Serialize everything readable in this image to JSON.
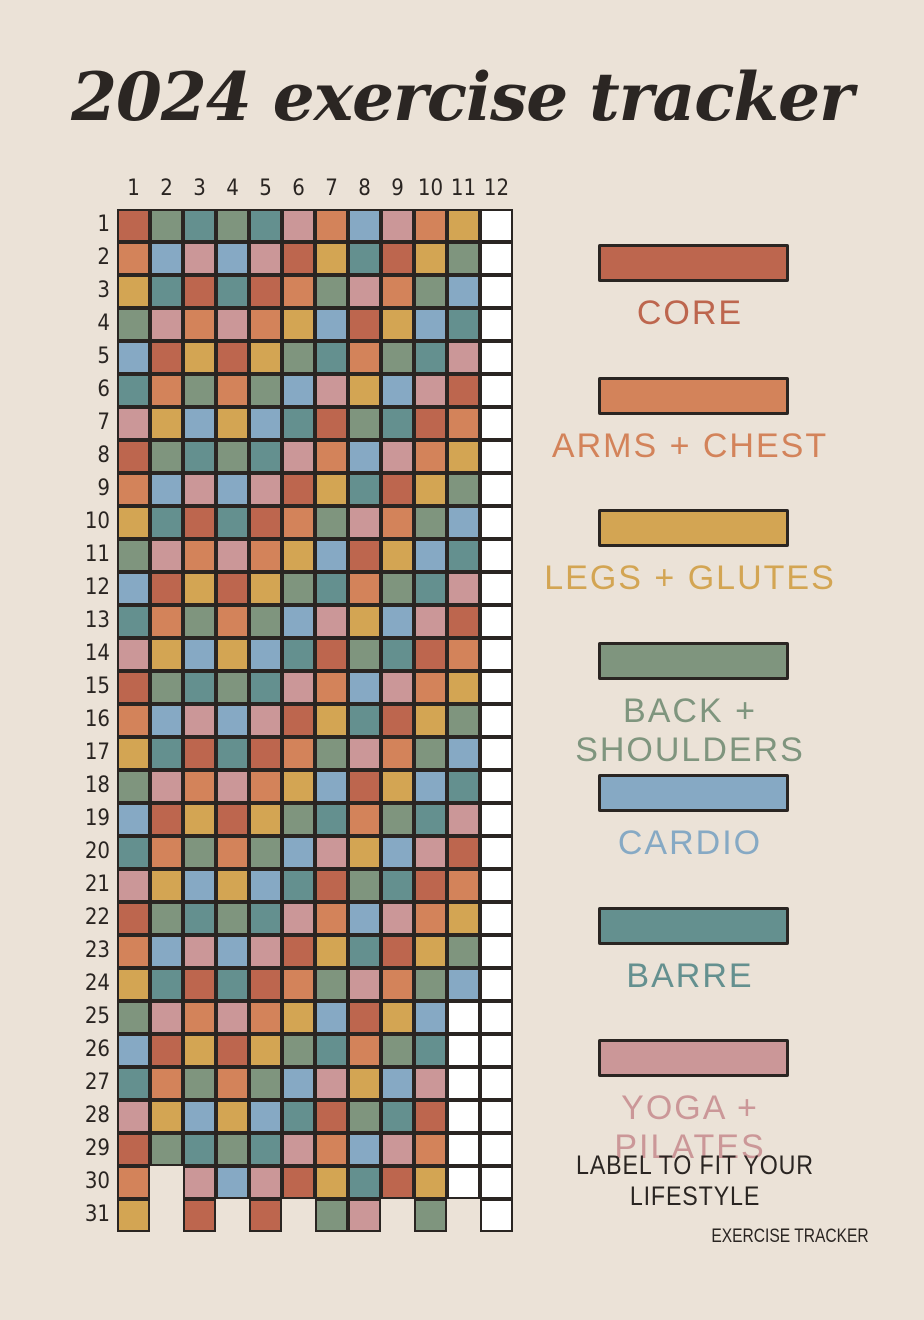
{
  "title": "2024 exercise tracker",
  "months": [
    "1",
    "2",
    "3",
    "4",
    "5",
    "6",
    "7",
    "8",
    "9",
    "10",
    "11",
    "12"
  ],
  "days": [
    "1",
    "2",
    "3",
    "4",
    "5",
    "6",
    "7",
    "8",
    "9",
    "10",
    "11",
    "12",
    "13",
    "14",
    "15",
    "16",
    "17",
    "18",
    "19",
    "20",
    "21",
    "22",
    "23",
    "24",
    "25",
    "26",
    "27",
    "28",
    "29",
    "30",
    "31"
  ],
  "days_in_month": [
    31,
    29,
    31,
    30,
    31,
    30,
    31,
    31,
    30,
    31,
    30,
    31
  ],
  "filled_days_per_month": [
    31,
    29,
    31,
    30,
    31,
    30,
    31,
    31,
    30,
    31,
    24,
    0
  ],
  "colors": {
    "core": "#bd664e",
    "arms_chest": "#d3835a",
    "legs_glutes": "#d3a553",
    "back_shoulders": "#7f957e",
    "cardio": "#86a9c4",
    "barre": "#64908f",
    "yoga_pilates": "#cb9798",
    "empty": "#ffffff",
    "outline": "#2a2522"
  },
  "category_cycle": [
    "core",
    "arms_chest",
    "legs_glutes",
    "back_shoulders",
    "cardio",
    "barre",
    "yoga_pilates"
  ],
  "month_start_offset": [
    0,
    3,
    5,
    3,
    5,
    6,
    1,
    4,
    6,
    1,
    2,
    null
  ],
  "legend": [
    {
      "key": "core",
      "label": "CORE"
    },
    {
      "key": "arms_chest",
      "label": "ARMS + CHEST"
    },
    {
      "key": "legs_glutes",
      "label": "LEGS + GLUTES"
    },
    {
      "key": "back_shoulders",
      "label": "BACK + SHOULDERS"
    },
    {
      "key": "cardio",
      "label": "CARDIO"
    },
    {
      "key": "barre",
      "label": "BARRE"
    },
    {
      "key": "yoga_pilates",
      "label": "YOGA + PILATES"
    }
  ],
  "note": "LABEL TO FIT YOUR LIFESTYLE",
  "footer": "EXERCISE TRACKER"
}
